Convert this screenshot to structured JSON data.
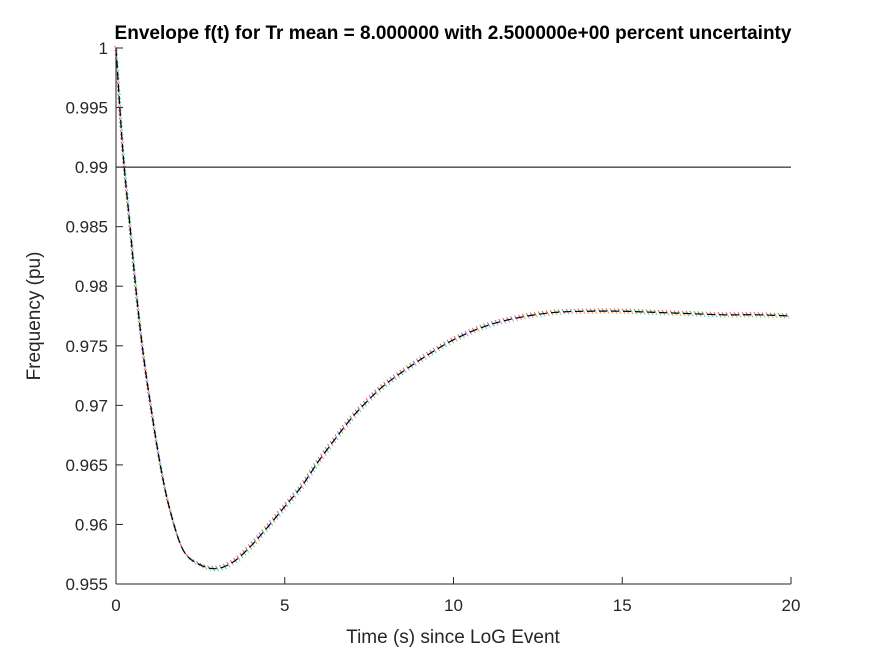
{
  "chart_data": {
    "type": "line",
    "title": "Envelope f(t) for Tr mean = 8.000000 with 2.500000e+00 percent uncertainty",
    "xlabel": "Time (s) since LoG Event",
    "ylabel": "Frequency (pu)",
    "xlim": [
      0,
      20
    ],
    "ylim": [
      0.955,
      1
    ],
    "xticks": [
      0,
      5,
      10,
      15,
      20
    ],
    "xtick_labels": [
      "0",
      "5",
      "10",
      "15",
      "20"
    ],
    "yticks": [
      0.955,
      0.96,
      0.965,
      0.97,
      0.975,
      0.98,
      0.985,
      0.99,
      0.995,
      1
    ],
    "ytick_labels": [
      "0.955",
      "0.96",
      "0.965",
      "0.97",
      "0.975",
      "0.98",
      "0.985",
      "0.99",
      "0.995",
      "1"
    ],
    "grid": false,
    "reference_line": {
      "y": 0.99,
      "color": "#000000"
    },
    "series": [
      {
        "style": "dashed",
        "color": "#000000",
        "x": [
          0,
          0.2,
          0.4,
          0.6,
          0.8,
          1.0,
          1.3,
          1.6,
          2.0,
          2.5,
          3.0,
          3.5,
          4.0,
          4.5,
          5.0,
          5.5,
          6.0,
          6.5,
          7.0,
          7.5,
          8.0,
          9.0,
          10.0,
          11.0,
          12.0,
          13.0,
          14.0,
          15.0,
          16.0,
          17.0,
          18.0,
          19.0,
          20.0
        ],
        "y": [
          1.0,
          0.9915,
          0.9855,
          0.9795,
          0.9745,
          0.9705,
          0.9652,
          0.9612,
          0.9578,
          0.9566,
          0.9563,
          0.9569,
          0.9582,
          0.9598,
          0.9615,
          0.9632,
          0.9653,
          0.9672,
          0.969,
          0.9705,
          0.9718,
          0.9738,
          0.9755,
          0.9767,
          0.9774,
          0.9778,
          0.9779,
          0.9779,
          0.9778,
          0.9777,
          0.9776,
          0.9776,
          0.9775
        ]
      }
    ],
    "envelope_colors": [
      "#ff0000",
      "#00a000",
      "#0000ff",
      "#ff00ff",
      "#d4a000",
      "#00b0b0"
    ]
  }
}
